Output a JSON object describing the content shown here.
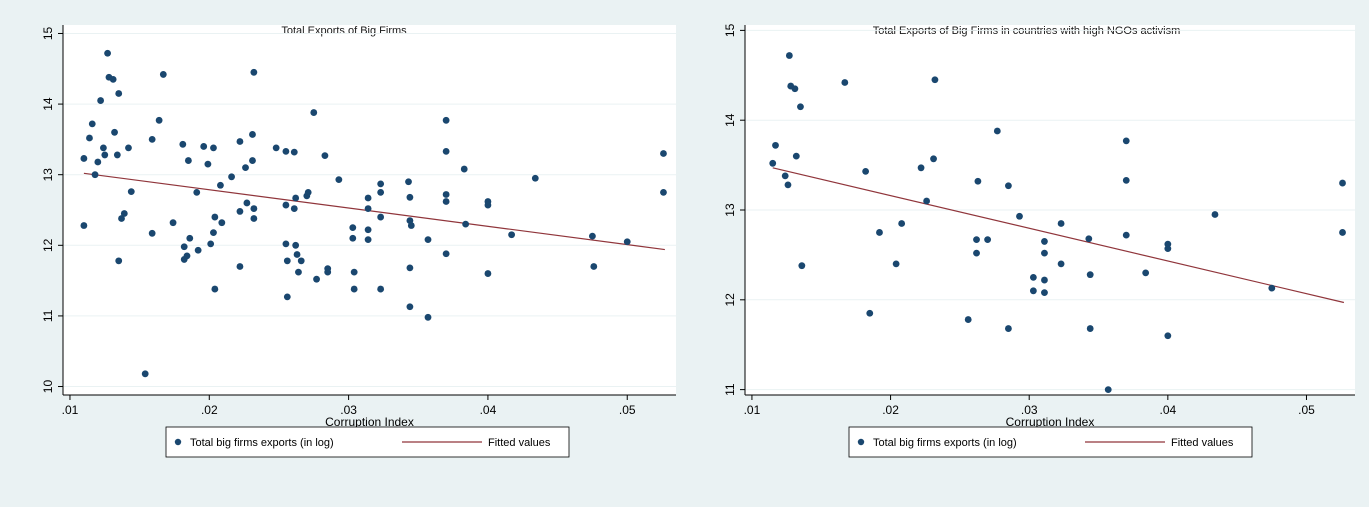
{
  "chart_data": [
    {
      "type": "scatter",
      "title": "Total Exports of Big Firms",
      "xlabel": "Corruption Index",
      "ylabel": "",
      "xlim": [
        0.0095,
        0.0535
      ],
      "ylim": [
        9.88,
        15.12
      ],
      "xticks": [
        0.01,
        0.02,
        0.03,
        0.04,
        0.05
      ],
      "xtick_labels": [
        ".01",
        ".02",
        ".03",
        ".04",
        ".05"
      ],
      "yticks": [
        10,
        11,
        12,
        13,
        14,
        15
      ],
      "ytick_labels": [
        "10",
        "11",
        "12",
        "13",
        "14",
        "15"
      ],
      "grid": true,
      "legend_position": "bottom-center",
      "series": [
        {
          "name": "Total big firms exports (in log)",
          "kind": "scatter",
          "color": "#1a476f",
          "points": [
            [
              0.011,
              13.23
            ],
            [
              0.011,
              12.28
            ],
            [
              0.0114,
              13.52
            ],
            [
              0.0116,
              13.72
            ],
            [
              0.0118,
              13.0
            ],
            [
              0.012,
              13.18
            ],
            [
              0.0122,
              14.05
            ],
            [
              0.0124,
              13.38
            ],
            [
              0.0125,
              13.28
            ],
            [
              0.0127,
              14.72
            ],
            [
              0.0128,
              14.38
            ],
            [
              0.0131,
              14.35
            ],
            [
              0.0132,
              13.6
            ],
            [
              0.0134,
              13.28
            ],
            [
              0.0135,
              11.78
            ],
            [
              0.0135,
              14.15
            ],
            [
              0.0137,
              12.38
            ],
            [
              0.0139,
              12.45
            ],
            [
              0.0142,
              13.38
            ],
            [
              0.0144,
              12.76
            ],
            [
              0.0154,
              10.18
            ],
            [
              0.0159,
              13.5
            ],
            [
              0.0159,
              12.17
            ],
            [
              0.0164,
              13.77
            ],
            [
              0.0167,
              14.42
            ],
            [
              0.0174,
              12.32
            ],
            [
              0.0181,
              13.43
            ],
            [
              0.0182,
              11.98
            ],
            [
              0.0182,
              11.8
            ],
            [
              0.0184,
              11.85
            ],
            [
              0.0185,
              13.2
            ],
            [
              0.0186,
              12.1
            ],
            [
              0.0191,
              12.75
            ],
            [
              0.0192,
              11.93
            ],
            [
              0.0196,
              13.4
            ],
            [
              0.0199,
              13.15
            ],
            [
              0.0201,
              12.02
            ],
            [
              0.0203,
              13.38
            ],
            [
              0.0203,
              12.18
            ],
            [
              0.0204,
              11.38
            ],
            [
              0.0204,
              12.4
            ],
            [
              0.0208,
              12.85
            ],
            [
              0.0209,
              12.32
            ],
            [
              0.0216,
              12.97
            ],
            [
              0.0222,
              12.48
            ],
            [
              0.0222,
              13.47
            ],
            [
              0.0222,
              11.7
            ],
            [
              0.0226,
              13.1
            ],
            [
              0.0227,
              12.6
            ],
            [
              0.0231,
              13.2
            ],
            [
              0.0231,
              13.57
            ],
            [
              0.0232,
              12.38
            ],
            [
              0.0232,
              12.52
            ],
            [
              0.0232,
              14.45
            ],
            [
              0.0248,
              13.38
            ],
            [
              0.0255,
              13.33
            ],
            [
              0.0255,
              12.57
            ],
            [
              0.0255,
              12.02
            ],
            [
              0.0256,
              11.78
            ],
            [
              0.0256,
              11.27
            ],
            [
              0.0261,
              13.32
            ],
            [
              0.0261,
              12.52
            ],
            [
              0.0262,
              12.67
            ],
            [
              0.0262,
              12.0
            ],
            [
              0.0263,
              11.87
            ],
            [
              0.0264,
              11.62
            ],
            [
              0.0266,
              11.78
            ],
            [
              0.027,
              12.7
            ],
            [
              0.0271,
              12.75
            ],
            [
              0.0275,
              13.88
            ],
            [
              0.0277,
              11.52
            ],
            [
              0.0283,
              13.27
            ],
            [
              0.0285,
              11.67
            ],
            [
              0.0285,
              11.62
            ],
            [
              0.0293,
              12.93
            ],
            [
              0.0303,
              12.25
            ],
            [
              0.0303,
              12.1
            ],
            [
              0.0304,
              11.62
            ],
            [
              0.0304,
              11.38
            ],
            [
              0.0314,
              12.08
            ],
            [
              0.0314,
              12.22
            ],
            [
              0.0314,
              12.52
            ],
            [
              0.0314,
              12.67
            ],
            [
              0.0323,
              12.87
            ],
            [
              0.0323,
              12.75
            ],
            [
              0.0323,
              12.4
            ],
            [
              0.0323,
              11.38
            ],
            [
              0.0343,
              12.9
            ],
            [
              0.0344,
              12.68
            ],
            [
              0.0344,
              12.35
            ],
            [
              0.0345,
              12.28
            ],
            [
              0.0344,
              11.68
            ],
            [
              0.0344,
              11.13
            ],
            [
              0.0357,
              12.08
            ],
            [
              0.0357,
              10.98
            ],
            [
              0.037,
              13.77
            ],
            [
              0.037,
              13.33
            ],
            [
              0.037,
              12.72
            ],
            [
              0.037,
              12.62
            ],
            [
              0.037,
              11.88
            ],
            [
              0.0383,
              13.08
            ],
            [
              0.0384,
              12.3
            ],
            [
              0.04,
              12.62
            ],
            [
              0.04,
              12.57
            ],
            [
              0.04,
              11.6
            ],
            [
              0.0417,
              12.15
            ],
            [
              0.0434,
              12.95
            ],
            [
              0.0475,
              12.13
            ],
            [
              0.0476,
              11.7
            ],
            [
              0.05,
              12.05
            ],
            [
              0.0526,
              13.3
            ],
            [
              0.0526,
              12.75
            ]
          ]
        },
        {
          "name": "Fitted values",
          "kind": "line",
          "color": "#90353b",
          "points": [
            [
              0.011,
              13.02
            ],
            [
              0.0527,
              11.94
            ]
          ]
        }
      ]
    },
    {
      "type": "scatter",
      "title": "Total Exports of Big Firms in countries with high NGOs activism",
      "xlabel": "Corruption Index",
      "ylabel": "",
      "xlim": [
        0.0095,
        0.0535
      ],
      "ylim": [
        10.94,
        15.06
      ],
      "xticks": [
        0.01,
        0.02,
        0.03,
        0.04,
        0.05
      ],
      "xtick_labels": [
        ".01",
        ".02",
        ".03",
        ".04",
        ".05"
      ],
      "yticks": [
        11,
        12,
        13,
        14,
        15
      ],
      "ytick_labels": [
        "11",
        "12",
        "13",
        "14",
        "15"
      ],
      "grid": true,
      "legend_position": "bottom-center",
      "series": [
        {
          "name": "Total big firms exports (in log)",
          "kind": "scatter",
          "color": "#1a476f",
          "points": [
            [
              0.0115,
              13.52
            ],
            [
              0.0117,
              13.72
            ],
            [
              0.0124,
              13.38
            ],
            [
              0.0126,
              13.28
            ],
            [
              0.0127,
              14.72
            ],
            [
              0.0128,
              14.38
            ],
            [
              0.0131,
              14.35
            ],
            [
              0.0132,
              13.6
            ],
            [
              0.0135,
              14.15
            ],
            [
              0.0136,
              12.38
            ],
            [
              0.0167,
              14.42
            ],
            [
              0.0182,
              13.43
            ],
            [
              0.0185,
              11.85
            ],
            [
              0.0192,
              12.75
            ],
            [
              0.0204,
              12.4
            ],
            [
              0.0208,
              12.85
            ],
            [
              0.0222,
              13.47
            ],
            [
              0.0226,
              13.1
            ],
            [
              0.0231,
              13.57
            ],
            [
              0.0232,
              14.45
            ],
            [
              0.0256,
              11.78
            ],
            [
              0.0262,
              12.52
            ],
            [
              0.0262,
              12.67
            ],
            [
              0.0263,
              13.32
            ],
            [
              0.027,
              12.67
            ],
            [
              0.0277,
              13.88
            ],
            [
              0.0285,
              13.27
            ],
            [
              0.0285,
              11.68
            ],
            [
              0.0293,
              12.93
            ],
            [
              0.0303,
              12.25
            ],
            [
              0.0303,
              12.1
            ],
            [
              0.0311,
              12.08
            ],
            [
              0.0311,
              12.22
            ],
            [
              0.0311,
              12.52
            ],
            [
              0.0311,
              12.65
            ],
            [
              0.0323,
              12.85
            ],
            [
              0.0323,
              12.4
            ],
            [
              0.0343,
              12.68
            ],
            [
              0.0344,
              12.28
            ],
            [
              0.0344,
              11.68
            ],
            [
              0.0357,
              11.0
            ],
            [
              0.037,
              13.77
            ],
            [
              0.037,
              13.33
            ],
            [
              0.037,
              12.72
            ],
            [
              0.0384,
              12.3
            ],
            [
              0.04,
              12.62
            ],
            [
              0.04,
              12.57
            ],
            [
              0.04,
              11.6
            ],
            [
              0.0434,
              12.95
            ],
            [
              0.0475,
              12.13
            ],
            [
              0.0526,
              13.3
            ],
            [
              0.0526,
              12.75
            ]
          ]
        },
        {
          "name": "Fitted values",
          "kind": "line",
          "color": "#90353b",
          "points": [
            [
              0.0115,
              13.47
            ],
            [
              0.0527,
              11.97
            ]
          ]
        }
      ]
    }
  ]
}
